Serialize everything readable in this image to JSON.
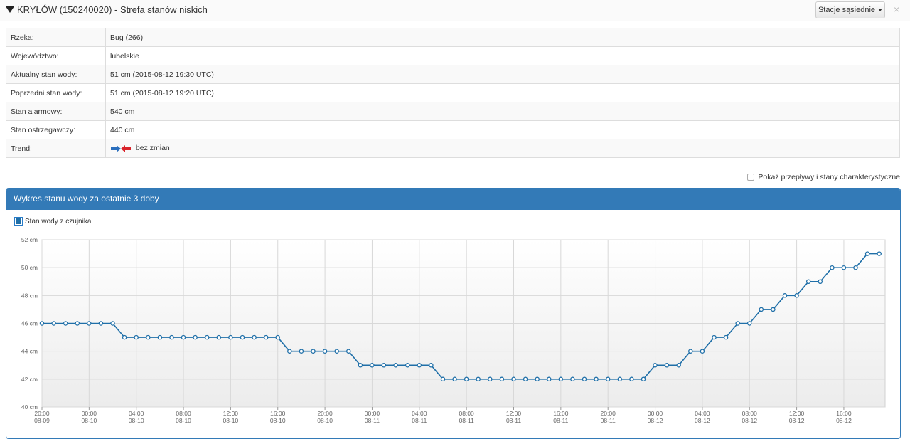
{
  "header": {
    "title": "KRYŁÓW (150240020) - Strefa stanów niskich",
    "neighbors_button": "Stacje sąsiednie",
    "close": "×"
  },
  "info_rows": [
    {
      "label": "Rzeka:",
      "value": "Bug (266)"
    },
    {
      "label": "Województwo:",
      "value": "lubelskie"
    },
    {
      "label": "Aktualny stan wody:",
      "value": "51 cm (2015-08-12 19:30 UTC)"
    },
    {
      "label": "Poprzedni stan wody:",
      "value": "51 cm (2015-08-12 19:20 UTC)"
    },
    {
      "label": "Stan alarmowy:",
      "value": "540 cm"
    },
    {
      "label": "Stan ostrzegawczy:",
      "value": "440 cm"
    },
    {
      "label": "Trend:",
      "value": "bez zmian"
    }
  ],
  "show_flows_label": "Pokaż przepływy i stany charakterystyczne",
  "panel_title": "Wykres stanu wody za ostatnie 3 doby",
  "colors": {
    "accent": "#337ab7",
    "series": "#1f6fa8",
    "arrow_right": "#2a6ebd",
    "arrow_left": "#d9232a"
  },
  "chart_data": {
    "type": "line",
    "series": [
      {
        "name": "Stan wody z czujnika",
        "values": [
          46,
          46,
          46,
          46,
          46,
          46,
          46,
          45,
          45,
          45,
          45,
          45,
          45,
          45,
          45,
          45,
          45,
          45,
          45,
          45,
          45,
          44,
          44,
          44,
          44,
          44,
          44,
          43,
          43,
          43,
          43,
          43,
          43,
          43,
          42,
          42,
          42,
          42,
          42,
          42,
          42,
          42,
          42,
          42,
          42,
          42,
          42,
          42,
          42,
          42,
          42,
          42,
          43,
          43,
          43,
          44,
          44,
          45,
          45,
          46,
          46,
          47,
          47,
          48,
          48,
          49,
          49,
          50,
          50,
          50,
          51,
          51
        ]
      }
    ],
    "x_start": "2015-08-09 20:00",
    "x_step_hours": 1,
    "x_ticks": [
      {
        "time": "20:00",
        "date": "08-09"
      },
      {
        "time": "00:00",
        "date": "08-10"
      },
      {
        "time": "04:00",
        "date": "08-10"
      },
      {
        "time": "08:00",
        "date": "08-10"
      },
      {
        "time": "12:00",
        "date": "08-10"
      },
      {
        "time": "16:00",
        "date": "08-10"
      },
      {
        "time": "20:00",
        "date": "08-10"
      },
      {
        "time": "00:00",
        "date": "08-11"
      },
      {
        "time": "04:00",
        "date": "08-11"
      },
      {
        "time": "08:00",
        "date": "08-11"
      },
      {
        "time": "12:00",
        "date": "08-11"
      },
      {
        "time": "16:00",
        "date": "08-11"
      },
      {
        "time": "20:00",
        "date": "08-11"
      },
      {
        "time": "00:00",
        "date": "08-12"
      },
      {
        "time": "04:00",
        "date": "08-12"
      },
      {
        "time": "08:00",
        "date": "08-12"
      },
      {
        "time": "12:00",
        "date": "08-12"
      },
      {
        "time": "16:00",
        "date": "08-12"
      }
    ],
    "y_ticks": [
      "40 cm",
      "42 cm",
      "44 cm",
      "46 cm",
      "48 cm",
      "50 cm",
      "52 cm"
    ],
    "ylim": [
      40,
      52
    ],
    "grid": true,
    "legend_position": "top-left"
  }
}
